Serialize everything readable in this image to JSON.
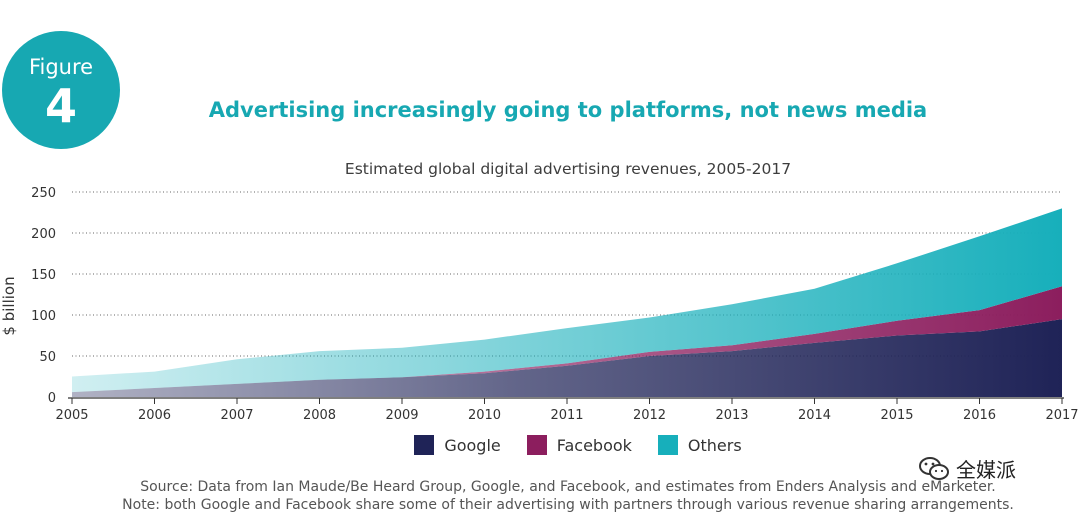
{
  "figure": {
    "label": "Figure",
    "number": "4"
  },
  "headline": "Advertising increasingly going to platforms, not news media",
  "chart_data": {
    "type": "area",
    "stacked": true,
    "title": "Estimated global digital advertising revenues, 2005-2017",
    "xlabel": "",
    "ylabel": "$ billion",
    "ylim": [
      0,
      250
    ],
    "yticks": [
      0,
      50,
      100,
      150,
      200,
      250
    ],
    "grid": true,
    "legend_position": "bottom",
    "x": [
      "2005",
      "2006",
      "2007",
      "2008",
      "2009",
      "2010",
      "2011",
      "2012",
      "2013",
      "2014",
      "2015",
      "2016",
      "2017"
    ],
    "series": [
      {
        "name": "Google",
        "color": "#1f2357",
        "values": [
          6,
          11,
          16,
          21,
          24,
          29,
          38,
          50,
          56,
          66,
          75,
          80,
          95
        ]
      },
      {
        "name": "Facebook",
        "color": "#8c1e5e",
        "values": [
          0,
          0,
          0,
          0,
          0,
          2,
          3,
          5,
          7,
          11,
          18,
          26,
          40
        ]
      },
      {
        "name": "Others",
        "color": "#17afbb",
        "values": [
          19,
          20,
          30,
          35,
          36,
          39,
          43,
          42,
          50,
          55,
          70,
          90,
          95
        ]
      }
    ]
  },
  "source_lines": [
    "Source: Data from Ian Maude/Be Heard Group, Google, and Facebook, and estimates from Enders Analysis and eMarketer.",
    "Note: both Google and Facebook share some of their advertising with partners through various revenue sharing arrangements."
  ],
  "watermark": {
    "text": "全媒派",
    "icon": "wechat-logo-icon"
  }
}
